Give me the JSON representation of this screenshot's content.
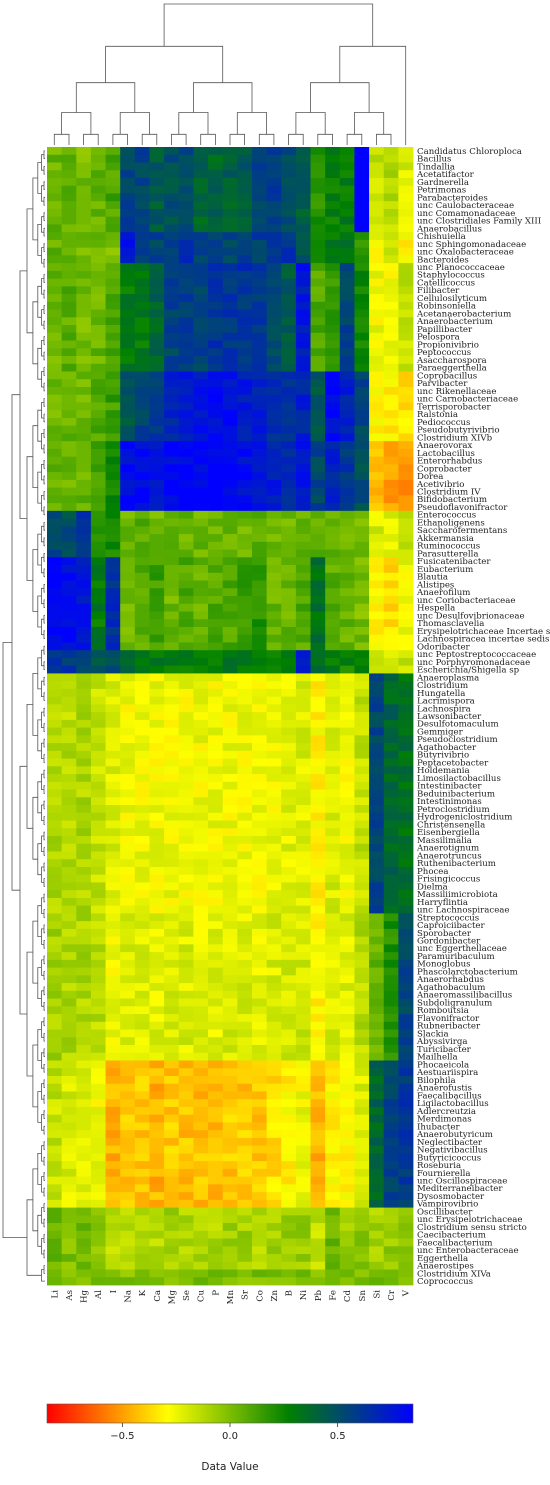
{
  "chart_data": {
    "type": "heatmap",
    "colorbar": {
      "title": "Data Value",
      "ticks": [
        "−0.5",
        "0.0",
        "0.5"
      ],
      "tick_values": [
        -0.5,
        0.0,
        0.5
      ],
      "range": [
        -0.85,
        0.85
      ],
      "colors": [
        "#ff0000",
        "#ffff00",
        "#008000",
        "#0000ff"
      ]
    },
    "columns": [
      "Li",
      "As",
      "Hg",
      "Al",
      "I",
      "Na",
      "K",
      "Ca",
      "Mg",
      "Se",
      "Cu",
      "P",
      "Mn",
      "Sr",
      "Co",
      "Zn",
      "B",
      "Ni",
      "Pb",
      "Fe",
      "Cd",
      "Sn",
      "Si",
      "Cr",
      "V"
    ],
    "rows": [
      "Candidatus Chloroploca",
      "Bacillus",
      "Tindallia",
      "Acetatifactor",
      "Gardnerella",
      "Petrimonas",
      "Parabacteroides",
      "unc Caulobacteraceae",
      "unc Comamonadaceae",
      "unc Clostridiales Family XIII",
      "Anaerobacillus",
      "Chishuiella",
      "unc Sphingomonadaceae",
      "unc Oxalobacteraceae",
      "Bacteroides",
      "unc Planococcaceae",
      "Staphylococcus",
      "Catellicoccus",
      "Filibacter",
      "Cellulosilyticum",
      "Robinsoniella",
      "Acetanaerobacterium",
      "Anaerobacterium",
      "Papillibacter",
      "Pelospora",
      "Propionivibrio",
      "Peptococcus",
      "Asaccharospora",
      "Paraeggerthella",
      "Coprobacillus",
      "Parvibacter",
      "unc Rikenellaceae",
      "unc Carnobacteriaceae",
      "Terrisporobacter",
      "Ralstonia",
      "Pediococcus",
      "Pseudobutyrivibrio",
      "Clostridium XIVb",
      "Anaerovorax",
      "Lactobacillus",
      "Enterorhabdus",
      "Coprobacter",
      "Dorea",
      "Acetivibrio",
      "Clostridium IV",
      "Bifidobacterium",
      "Pseudoflavonifractor",
      "Enterococcus",
      "Ethanoligenens",
      "Saccharofermentans",
      "Akkermansia",
      "Ruminococcus",
      "Parasutterella",
      "Fusicatenibacter",
      "Eubacterium",
      "Blautia",
      "Alistipes",
      "Anaerofilum",
      "unc Coriobacteriaceae",
      "Hespella",
      "unc Desulfovibrionaceae",
      "Thomasclavelia",
      "Erysipelotrichaceae Incertae sedis",
      "Lachnospiracea incertae sedis",
      "Odoribacter",
      "unc Peptostreptococcaceae",
      "unc Porphyromonadaceae",
      "Escherichia/Shigella sp",
      "Anaeroplasma",
      "Clostridium",
      "Hungatella",
      "Lacrimispora",
      "Lachnospira",
      "Lawsonibacter",
      "Desulfotomaculum",
      "Gemmiger",
      "Pseudoclostridium",
      "Agathobacter",
      "Butyrivibrio",
      "Peptacetobacter",
      "Holdemania",
      "Limosilactobacillus",
      "Intestinibacter",
      "Beduinibacterium",
      "Intestinimonas",
      "Petroclostridium",
      "Hydrogeniclostridium",
      "Christensenella",
      "Eisenbergiella",
      "Massilimalia",
      "Anaerotignum",
      "Anaerotruncus",
      "Ruthenibacterium",
      "Phocea",
      "Frisingicoccus",
      "Dielma",
      "Massiliimicrobiota",
      "Harryflintia",
      "unc Lachnospiraceae",
      "Streptococcus",
      "Caproiciibacter",
      "Sporobacter",
      "Gordonibacter",
      "unc Eggerthellaceae",
      "Paramuribaculum",
      "Monoglobus",
      "Phascolarctobacterium",
      "Anaerorhabdus",
      "Agathobaculum",
      "Anaeromassilibacillus",
      "Subdoligranulum",
      "Romboutsia",
      "Flavonifractor",
      "Rubneribacter",
      "Slackia",
      "Abyssivirga",
      "Turicibacter",
      "Mailhella",
      "Phocaeicola",
      "Aestuariispira",
      "Bilophila",
      "Anaerofustis",
      "Faecalibacillus",
      "Ligilactobacillus",
      "Adlercreutzia",
      "Merdimonas",
      "Ihubacter",
      "Anaerobutyricum",
      "Neglectibacter",
      "Negativibacillus",
      "Butyricicoccus",
      "Roseburia",
      "Fournierella",
      "unc Oscillospiraceae",
      "Mediterraneibacter",
      "Dysosmobacter",
      "Vampirovibrio",
      "Oscillibacter",
      "unc Erysipelotrichaceae",
      "Clostridium sensu stricto",
      "Caecibacterium",
      "Faecalibacterium",
      "unc Enterobacteraceae",
      "Eggerthella",
      "Anaerostipes",
      "Clostridium XIVa",
      "Coprococcus"
    ],
    "blocks": [
      {
        "rows": [
          0,
          10
        ],
        "values": [
          0.05,
          0.08,
          0.02,
          0.06,
          0.12,
          0.55,
          0.55,
          0.45,
          0.5,
          0.52,
          0.4,
          0.4,
          0.42,
          0.45,
          0.55,
          0.6,
          0.5,
          0.42,
          0.2,
          0.28,
          0.3,
          0.9,
          -0.15,
          -0.12,
          -0.2
        ]
      },
      {
        "rows": [
          11,
          14
        ],
        "values": [
          0.05,
          0.05,
          0.02,
          0.05,
          0.02,
          0.75,
          0.55,
          0.55,
          0.6,
          0.62,
          0.55,
          0.55,
          0.55,
          0.6,
          0.58,
          0.62,
          0.62,
          0.45,
          0.25,
          0.3,
          0.35,
          0.2,
          -0.25,
          -0.2,
          -0.3
        ]
      },
      {
        "rows": [
          15,
          28
        ],
        "values": [
          0.05,
          0.08,
          0.02,
          0.05,
          0.1,
          0.3,
          0.3,
          0.4,
          0.55,
          0.6,
          0.55,
          0.62,
          0.62,
          0.62,
          0.62,
          0.5,
          0.45,
          0.75,
          0.1,
          0.15,
          0.55,
          0.25,
          -0.25,
          -0.25,
          -0.15
        ]
      },
      {
        "rows": [
          29,
          37
        ],
        "values": [
          0.02,
          0.05,
          0.05,
          0.1,
          0.15,
          0.45,
          0.55,
          0.6,
          0.7,
          0.72,
          0.75,
          0.78,
          0.78,
          0.75,
          0.72,
          0.65,
          0.62,
          0.7,
          0.45,
          0.8,
          0.72,
          0.55,
          -0.3,
          -0.3,
          -0.35
        ]
      },
      {
        "rows": [
          38,
          46
        ],
        "values": [
          0.05,
          0.05,
          0.05,
          0.15,
          0.25,
          0.8,
          0.8,
          0.78,
          0.82,
          0.82,
          0.82,
          0.82,
          0.82,
          0.8,
          0.78,
          0.72,
          0.68,
          0.75,
          0.55,
          0.7,
          0.62,
          0.5,
          -0.45,
          -0.5,
          -0.5
        ]
      },
      {
        "rows": [
          47,
          52
        ],
        "values": [
          0.55,
          0.5,
          0.6,
          0.2,
          0.25,
          0.05,
          0.08,
          0.05,
          0.05,
          0.05,
          0.05,
          0.05,
          0.05,
          0.05,
          0.08,
          0.05,
          0.05,
          0.05,
          0.08,
          0.05,
          0.05,
          0.02,
          -0.2,
          -0.2,
          -0.15
        ]
      },
      {
        "rows": [
          53,
          64
        ],
        "values": [
          0.85,
          0.8,
          0.75,
          0.3,
          0.65,
          0.05,
          0.08,
          0.15,
          0.05,
          0.1,
          0.05,
          0.1,
          0.1,
          0.15,
          0.2,
          0.05,
          0.05,
          0.1,
          0.35,
          0.08,
          0.05,
          0.02,
          -0.3,
          -0.35,
          -0.25
        ]
      },
      {
        "rows": [
          65,
          67
        ],
        "values": [
          0.65,
          0.6,
          0.55,
          0.45,
          0.5,
          0.35,
          0.3,
          0.3,
          0.3,
          0.3,
          0.3,
          0.3,
          0.3,
          0.3,
          0.3,
          0.3,
          0.3,
          0.7,
          0.4,
          0.3,
          0.25,
          0.3,
          -0.15,
          -0.2,
          -0.15
        ]
      },
      {
        "rows": [
          68,
          98
        ],
        "values": [
          -0.1,
          -0.12,
          -0.1,
          -0.15,
          -0.2,
          -0.25,
          -0.25,
          -0.25,
          -0.25,
          -0.25,
          -0.25,
          -0.25,
          -0.25,
          -0.25,
          -0.25,
          -0.25,
          -0.22,
          -0.2,
          -0.3,
          -0.2,
          -0.25,
          -0.15,
          0.55,
          0.4,
          0.35
        ]
      },
      {
        "rows": [
          99,
          117
        ],
        "values": [
          -0.08,
          -0.1,
          -0.1,
          -0.12,
          -0.25,
          -0.2,
          -0.2,
          -0.22,
          -0.2,
          -0.2,
          -0.22,
          -0.22,
          -0.2,
          -0.2,
          -0.22,
          -0.2,
          -0.18,
          -0.18,
          -0.3,
          -0.2,
          -0.2,
          -0.12,
          0.05,
          0.2,
          0.55
        ]
      },
      {
        "rows": [
          118,
          136
        ],
        "values": [
          -0.15,
          -0.2,
          -0.2,
          -0.25,
          -0.45,
          -0.4,
          -0.4,
          -0.45,
          -0.4,
          -0.42,
          -0.42,
          -0.42,
          -0.4,
          -0.4,
          -0.4,
          -0.35,
          -0.3,
          -0.25,
          -0.45,
          -0.3,
          -0.3,
          -0.2,
          0.4,
          0.55,
          0.6
        ]
      },
      {
        "rows": [
          137,
          144
        ],
        "values": [
          0.05,
          0.0,
          0.05,
          -0.05,
          -0.12,
          -0.12,
          -0.1,
          -0.12,
          -0.08,
          -0.1,
          -0.1,
          -0.1,
          -0.08,
          -0.08,
          -0.1,
          -0.08,
          -0.05,
          -0.05,
          -0.15,
          0.05,
          -0.05,
          0.0,
          -0.1,
          -0.05,
          -0.05
        ]
      }
    ]
  }
}
